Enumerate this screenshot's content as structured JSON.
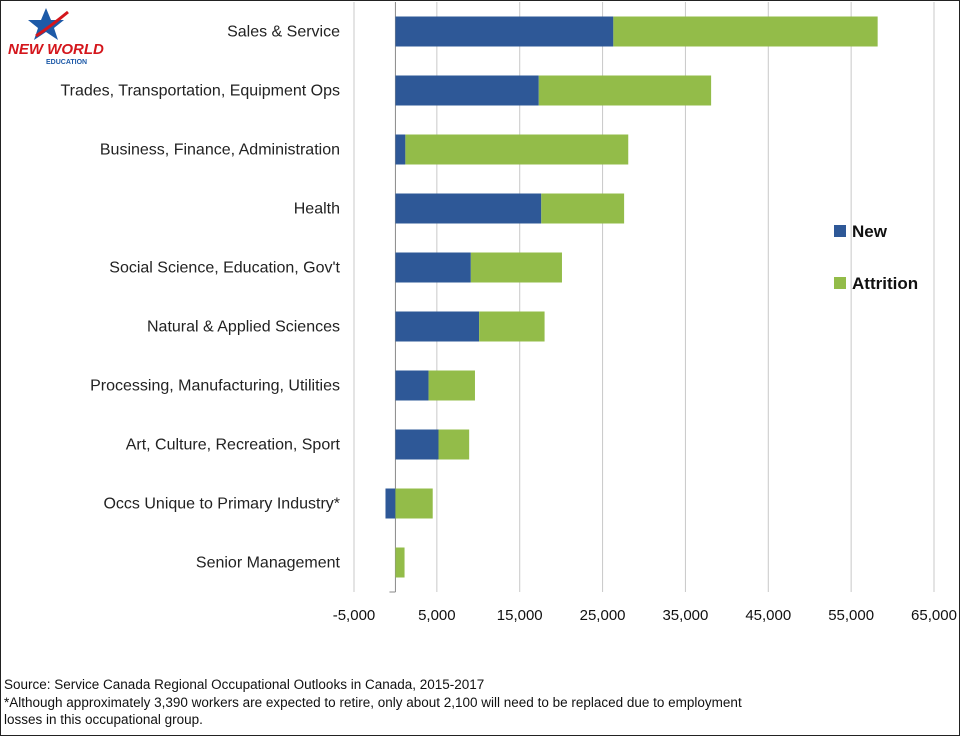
{
  "logo": {
    "line1": "NEW WORLD",
    "line2": "EDUCATION",
    "color_red": "#d4161c",
    "color_blue": "#1d5aa8"
  },
  "chart_data": {
    "type": "bar",
    "orientation": "horizontal",
    "stacked": true,
    "title": "",
    "xlabel": "",
    "ylabel": "",
    "categories": [
      "Sales & Service",
      "Trades, Transportation, Equipment Ops",
      "Business, Finance, Administration",
      "Health",
      "Social Science, Education, Gov't",
      "Natural & Applied Sciences",
      "Processing, Manufacturing, Utilities",
      "Art, Culture, Recreation, Sport",
      "Occs Unique to Primary Industry*",
      "Senior Management"
    ],
    "series": [
      {
        "name": "New",
        "color": "#2e5897",
        "values": [
          26300,
          17300,
          1200,
          17600,
          9100,
          10100,
          4000,
          5200,
          -1200,
          0
        ]
      },
      {
        "name": "Attrition",
        "color": "#93bc49",
        "values": [
          31900,
          20800,
          26900,
          10000,
          11000,
          7900,
          5600,
          3700,
          4500,
          1100
        ]
      }
    ],
    "xlim": [
      -5000,
      65000
    ],
    "xticks": [
      -5000,
      5000,
      15000,
      25000,
      35000,
      45000,
      55000,
      65000
    ],
    "xtick_labels": [
      "-5,000",
      "5,000",
      "15,000",
      "25,000",
      "35,000",
      "45,000",
      "55,000",
      "65,000"
    ],
    "grid": "vertical",
    "legend_position": "right"
  },
  "footer": {
    "source": "Source: Service Canada Regional Occupational Outlooks in Canada, 2015-2017",
    "note_line1": "*Although approximately 3,390 workers are expected to retire, only about 2,100 will need to be replaced due to employment",
    "note_line2": "losses in this occupational group."
  }
}
